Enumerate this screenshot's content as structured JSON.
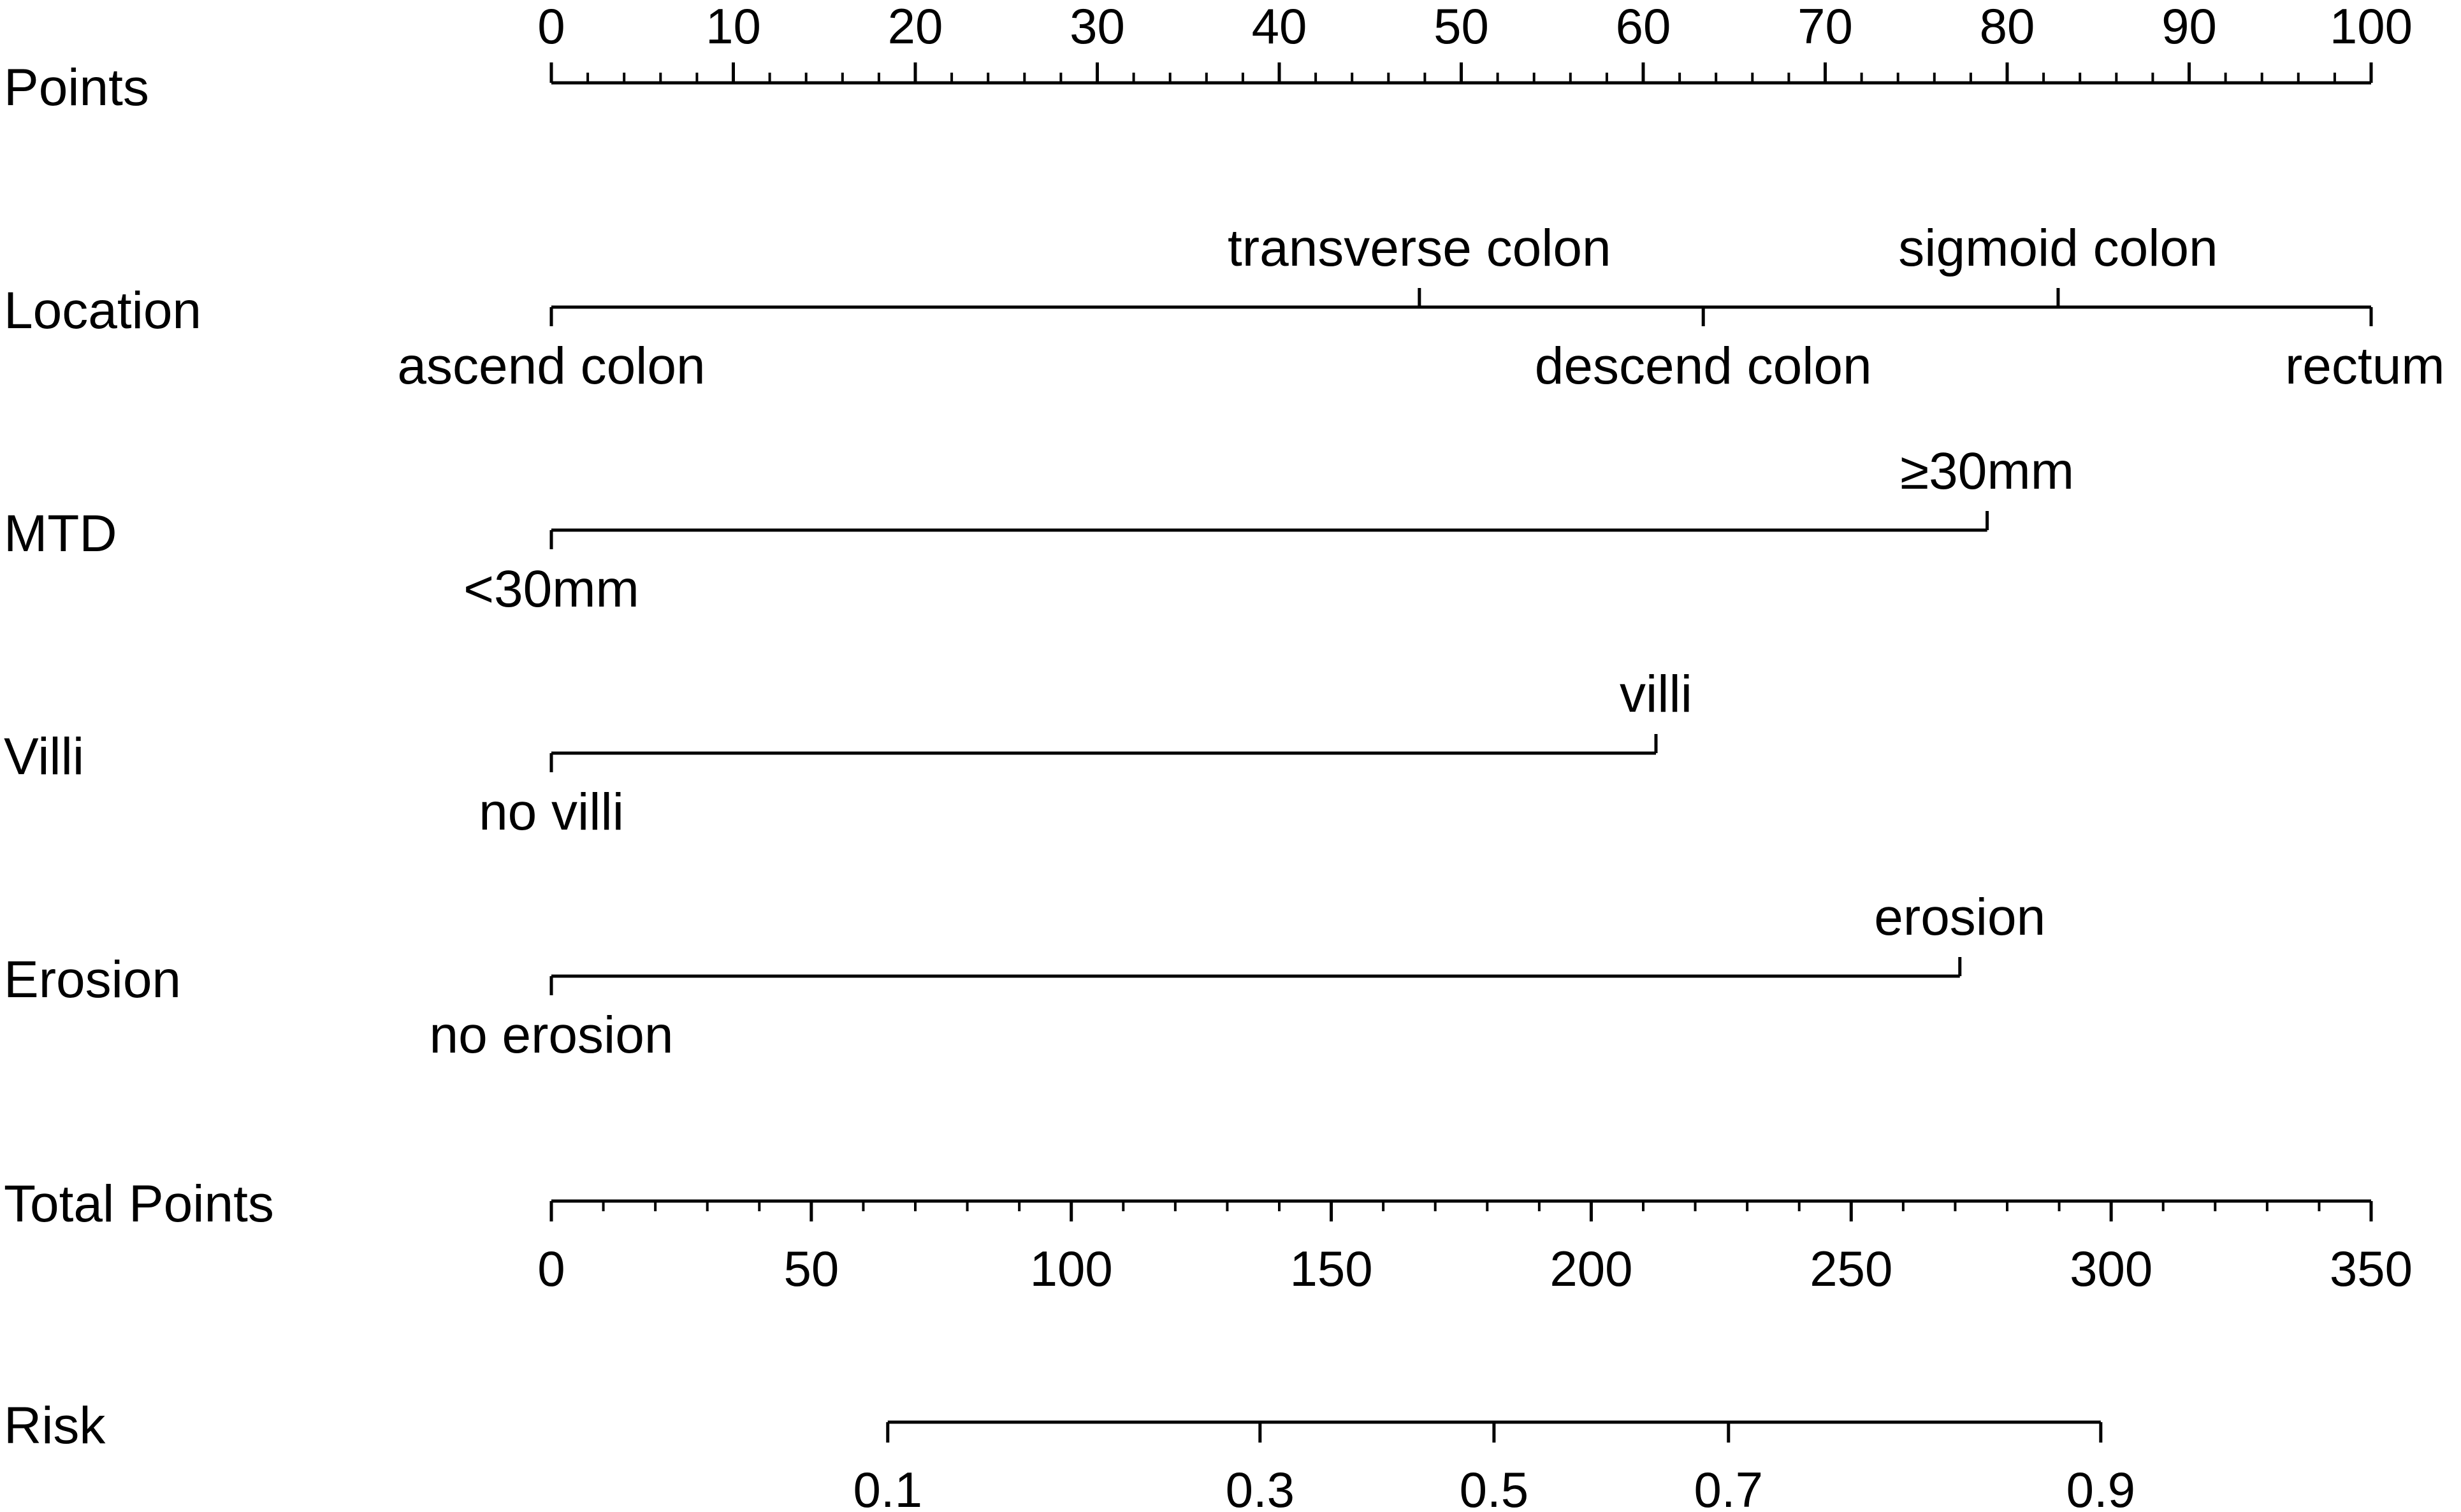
{
  "chart_data": {
    "type": "nomogram",
    "rows": [
      {
        "label": "Points",
        "kind": "scale",
        "range": [
          0,
          100
        ],
        "ticks": [
          0,
          10,
          20,
          30,
          40,
          50,
          60,
          70,
          80,
          90,
          100
        ],
        "tick_labels": [
          "0",
          "10",
          "20",
          "30",
          "40",
          "50",
          "60",
          "70",
          "80",
          "90",
          "100"
        ],
        "minor_step": 2
      },
      {
        "label": "Location",
        "kind": "categorical",
        "levels": [
          {
            "label": "ascend colon",
            "points": 0
          },
          {
            "label": "transverse colon",
            "points": 47.7
          },
          {
            "label": "descend colon",
            "points": 63.3
          },
          {
            "label": "sigmoid colon",
            "points": 82.8
          },
          {
            "label": "rectum",
            "points": 100
          }
        ]
      },
      {
        "label": "MTD",
        "kind": "categorical",
        "levels": [
          {
            "label": "<30mm",
            "points": 0
          },
          {
            "label": "≥30mm",
            "points": 78.9
          }
        ]
      },
      {
        "label": "Villi",
        "kind": "categorical",
        "levels": [
          {
            "label": "no villi",
            "points": 0
          },
          {
            "label": "villi",
            "points": 60.7
          }
        ]
      },
      {
        "label": "Erosion",
        "kind": "categorical",
        "levels": [
          {
            "label": "no erosion",
            "points": 0
          },
          {
            "label": "erosion",
            "points": 77.4
          }
        ]
      },
      {
        "label": "Total Points",
        "kind": "scale",
        "range": [
          0,
          350
        ],
        "ticks": [
          0,
          50,
          100,
          150,
          200,
          250,
          300,
          350
        ],
        "tick_labels": [
          "0",
          "50",
          "100",
          "150",
          "200",
          "250",
          "300",
          "350"
        ],
        "minor_step": 10
      },
      {
        "label": "Risk",
        "kind": "risk",
        "ticks": [
          {
            "label": "0.1",
            "total_points": 64.7
          },
          {
            "label": "0.3",
            "total_points": 136.3
          },
          {
            "label": "0.5",
            "total_points": 181.3
          },
          {
            "label": "0.7",
            "total_points": 226.4
          },
          {
            "label": "0.9",
            "total_points": 298.0
          }
        ]
      }
    ]
  }
}
